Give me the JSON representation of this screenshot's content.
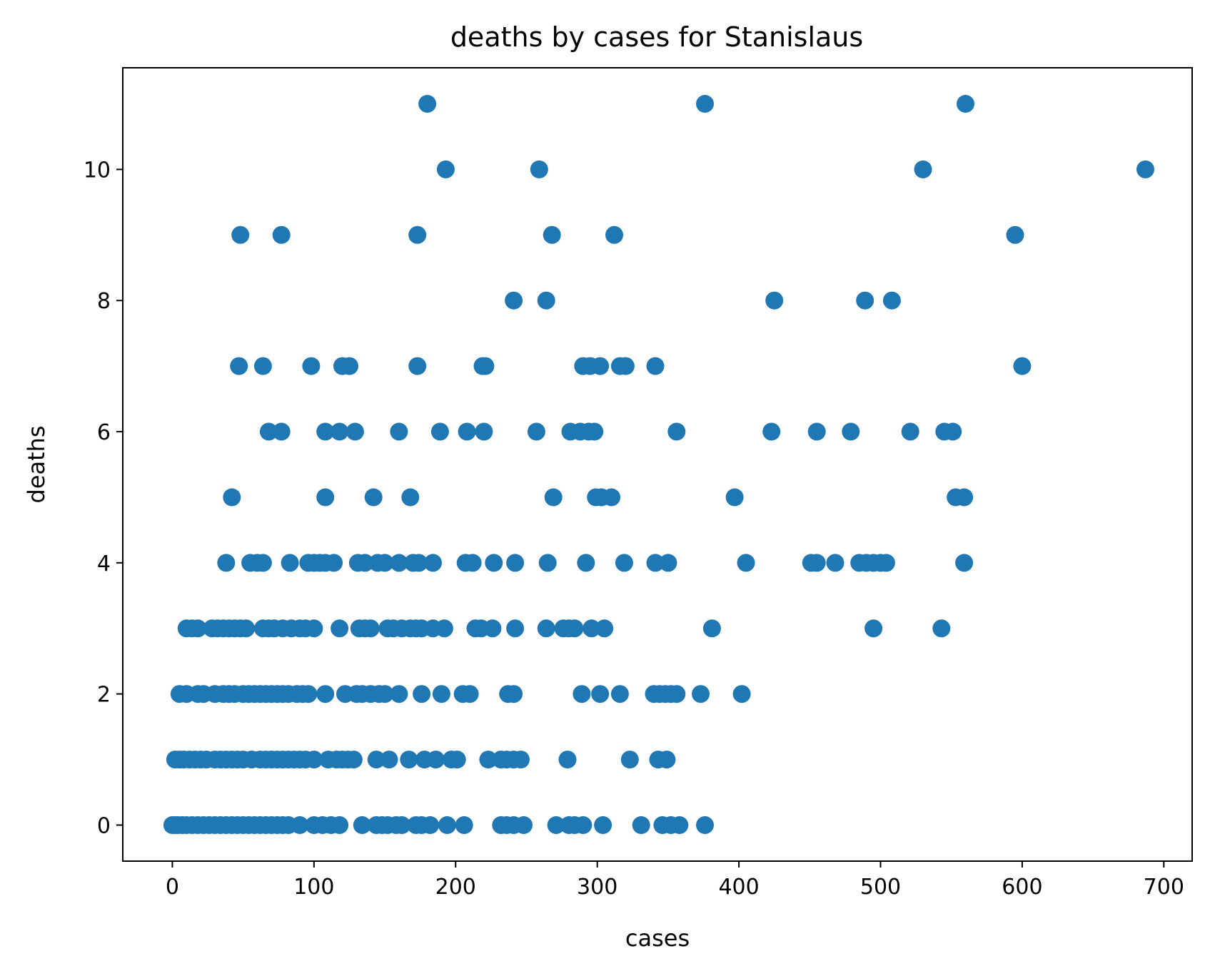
{
  "chart_data": {
    "type": "scatter",
    "title": "deaths by cases for Stanislaus",
    "xlabel": "cases",
    "ylabel": "deaths",
    "xlim": [
      -35,
      720
    ],
    "ylim": [
      -0.55,
      11.55
    ],
    "xticks": [
      0,
      100,
      200,
      300,
      400,
      500,
      600,
      700
    ],
    "yticks": [
      0,
      2,
      4,
      6,
      8,
      10
    ],
    "xtick_labels": [
      "0",
      "100",
      "200",
      "300",
      "400",
      "500",
      "600",
      "700"
    ],
    "ytick_labels": [
      "0",
      "2",
      "4",
      "6",
      "8",
      "10"
    ],
    "grid": false,
    "marker_color": "#1f77b4",
    "series": [
      {
        "points": [
          [
            180,
            11
          ],
          [
            376,
            11
          ],
          [
            560,
            11
          ],
          [
            193,
            10
          ],
          [
            259,
            10
          ],
          [
            530,
            10
          ],
          [
            687,
            10
          ],
          [
            48,
            9
          ],
          [
            77,
            9
          ],
          [
            173,
            9
          ],
          [
            268,
            9
          ],
          [
            312,
            9
          ],
          [
            595,
            9
          ],
          [
            241,
            8
          ],
          [
            264,
            8
          ],
          [
            425,
            8
          ],
          [
            489,
            8
          ],
          [
            508,
            8
          ],
          [
            47,
            7
          ],
          [
            64,
            7
          ],
          [
            98,
            7
          ],
          [
            120,
            7
          ],
          [
            125,
            7
          ],
          [
            173,
            7
          ],
          [
            219,
            7
          ],
          [
            221,
            7
          ],
          [
            290,
            7
          ],
          [
            295,
            7
          ],
          [
            302,
            7
          ],
          [
            316,
            7
          ],
          [
            320,
            7
          ],
          [
            341,
            7
          ],
          [
            600,
            7
          ],
          [
            68,
            6
          ],
          [
            77,
            6
          ],
          [
            108,
            6
          ],
          [
            118,
            6
          ],
          [
            129,
            6
          ],
          [
            160,
            6
          ],
          [
            189,
            6
          ],
          [
            208,
            6
          ],
          [
            220,
            6
          ],
          [
            257,
            6
          ],
          [
            281,
            6
          ],
          [
            288,
            6
          ],
          [
            294,
            6
          ],
          [
            298,
            6
          ],
          [
            356,
            6
          ],
          [
            423,
            6
          ],
          [
            455,
            6
          ],
          [
            479,
            6
          ],
          [
            521,
            6
          ],
          [
            545,
            6
          ],
          [
            551,
            6
          ],
          [
            42,
            5
          ],
          [
            108,
            5
          ],
          [
            142,
            5
          ],
          [
            168,
            5
          ],
          [
            269,
            5
          ],
          [
            299,
            5
          ],
          [
            303,
            5
          ],
          [
            310,
            5
          ],
          [
            397,
            5
          ],
          [
            553,
            5
          ],
          [
            559,
            5
          ],
          [
            38,
            4
          ],
          [
            55,
            4
          ],
          [
            60,
            4
          ],
          [
            64,
            4
          ],
          [
            83,
            4
          ],
          [
            96,
            4
          ],
          [
            100,
            4
          ],
          [
            104,
            4
          ],
          [
            108,
            4
          ],
          [
            114,
            4
          ],
          [
            131,
            4
          ],
          [
            136,
            4
          ],
          [
            145,
            4
          ],
          [
            150,
            4
          ],
          [
            160,
            4
          ],
          [
            170,
            4
          ],
          [
            174,
            4
          ],
          [
            184,
            4
          ],
          [
            207,
            4
          ],
          [
            212,
            4
          ],
          [
            227,
            4
          ],
          [
            242,
            4
          ],
          [
            265,
            4
          ],
          [
            292,
            4
          ],
          [
            319,
            4
          ],
          [
            341,
            4
          ],
          [
            350,
            4
          ],
          [
            405,
            4
          ],
          [
            451,
            4
          ],
          [
            455,
            4
          ],
          [
            468,
            4
          ],
          [
            485,
            4
          ],
          [
            490,
            4
          ],
          [
            495,
            4
          ],
          [
            500,
            4
          ],
          [
            504,
            4
          ],
          [
            559,
            4
          ],
          [
            10,
            3
          ],
          [
            14,
            3
          ],
          [
            18,
            3
          ],
          [
            28,
            3
          ],
          [
            32,
            3
          ],
          [
            36,
            3
          ],
          [
            40,
            3
          ],
          [
            44,
            3
          ],
          [
            48,
            3
          ],
          [
            52,
            3
          ],
          [
            64,
            3
          ],
          [
            68,
            3
          ],
          [
            72,
            3
          ],
          [
            78,
            3
          ],
          [
            84,
            3
          ],
          [
            90,
            3
          ],
          [
            94,
            3
          ],
          [
            100,
            3
          ],
          [
            118,
            3
          ],
          [
            132,
            3
          ],
          [
            136,
            3
          ],
          [
            140,
            3
          ],
          [
            152,
            3
          ],
          [
            156,
            3
          ],
          [
            162,
            3
          ],
          [
            168,
            3
          ],
          [
            172,
            3
          ],
          [
            176,
            3
          ],
          [
            184,
            3
          ],
          [
            192,
            3
          ],
          [
            214,
            3
          ],
          [
            218,
            3
          ],
          [
            226,
            3
          ],
          [
            242,
            3
          ],
          [
            264,
            3
          ],
          [
            276,
            3
          ],
          [
            280,
            3
          ],
          [
            284,
            3
          ],
          [
            296,
            3
          ],
          [
            305,
            3
          ],
          [
            381,
            3
          ],
          [
            495,
            3
          ],
          [
            543,
            3
          ],
          [
            5,
            2
          ],
          [
            10,
            2
          ],
          [
            18,
            2
          ],
          [
            22,
            2
          ],
          [
            30,
            2
          ],
          [
            36,
            2
          ],
          [
            40,
            2
          ],
          [
            44,
            2
          ],
          [
            50,
            2
          ],
          [
            54,
            2
          ],
          [
            58,
            2
          ],
          [
            62,
            2
          ],
          [
            66,
            2
          ],
          [
            70,
            2
          ],
          [
            74,
            2
          ],
          [
            78,
            2
          ],
          [
            82,
            2
          ],
          [
            88,
            2
          ],
          [
            92,
            2
          ],
          [
            96,
            2
          ],
          [
            108,
            2
          ],
          [
            122,
            2
          ],
          [
            130,
            2
          ],
          [
            134,
            2
          ],
          [
            140,
            2
          ],
          [
            146,
            2
          ],
          [
            150,
            2
          ],
          [
            160,
            2
          ],
          [
            176,
            2
          ],
          [
            190,
            2
          ],
          [
            205,
            2
          ],
          [
            210,
            2
          ],
          [
            237,
            2
          ],
          [
            241,
            2
          ],
          [
            289,
            2
          ],
          [
            302,
            2
          ],
          [
            316,
            2
          ],
          [
            340,
            2
          ],
          [
            344,
            2
          ],
          [
            348,
            2
          ],
          [
            352,
            2
          ],
          [
            356,
            2
          ],
          [
            373,
            2
          ],
          [
            402,
            2
          ],
          [
            2,
            1
          ],
          [
            5,
            1
          ],
          [
            8,
            1
          ],
          [
            12,
            1
          ],
          [
            16,
            1
          ],
          [
            20,
            1
          ],
          [
            24,
            1
          ],
          [
            30,
            1
          ],
          [
            34,
            1
          ],
          [
            38,
            1
          ],
          [
            42,
            1
          ],
          [
            46,
            1
          ],
          [
            50,
            1
          ],
          [
            56,
            1
          ],
          [
            62,
            1
          ],
          [
            66,
            1
          ],
          [
            70,
            1
          ],
          [
            74,
            1
          ],
          [
            78,
            1
          ],
          [
            82,
            1
          ],
          [
            86,
            1
          ],
          [
            90,
            1
          ],
          [
            94,
            1
          ],
          [
            100,
            1
          ],
          [
            110,
            1
          ],
          [
            116,
            1
          ],
          [
            120,
            1
          ],
          [
            124,
            1
          ],
          [
            128,
            1
          ],
          [
            144,
            1
          ],
          [
            153,
            1
          ],
          [
            167,
            1
          ],
          [
            178,
            1
          ],
          [
            186,
            1
          ],
          [
            197,
            1
          ],
          [
            201,
            1
          ],
          [
            223,
            1
          ],
          [
            232,
            1
          ],
          [
            236,
            1
          ],
          [
            241,
            1
          ],
          [
            246,
            1
          ],
          [
            279,
            1
          ],
          [
            323,
            1
          ],
          [
            343,
            1
          ],
          [
            349,
            1
          ],
          [
            0,
            0
          ],
          [
            2,
            0
          ],
          [
            4,
            0
          ],
          [
            7,
            0
          ],
          [
            10,
            0
          ],
          [
            14,
            0
          ],
          [
            18,
            0
          ],
          [
            22,
            0
          ],
          [
            26,
            0
          ],
          [
            30,
            0
          ],
          [
            34,
            0
          ],
          [
            38,
            0
          ],
          [
            42,
            0
          ],
          [
            46,
            0
          ],
          [
            50,
            0
          ],
          [
            54,
            0
          ],
          [
            58,
            0
          ],
          [
            62,
            0
          ],
          [
            66,
            0
          ],
          [
            70,
            0
          ],
          [
            74,
            0
          ],
          [
            78,
            0
          ],
          [
            82,
            0
          ],
          [
            90,
            0
          ],
          [
            100,
            0
          ],
          [
            106,
            0
          ],
          [
            112,
            0
          ],
          [
            118,
            0
          ],
          [
            134,
            0
          ],
          [
            144,
            0
          ],
          [
            148,
            0
          ],
          [
            152,
            0
          ],
          [
            158,
            0
          ],
          [
            162,
            0
          ],
          [
            172,
            0
          ],
          [
            176,
            0
          ],
          [
            182,
            0
          ],
          [
            194,
            0
          ],
          [
            206,
            0
          ],
          [
            232,
            0
          ],
          [
            236,
            0
          ],
          [
            241,
            0
          ],
          [
            248,
            0
          ],
          [
            271,
            0
          ],
          [
            280,
            0
          ],
          [
            284,
            0
          ],
          [
            290,
            0
          ],
          [
            304,
            0
          ],
          [
            331,
            0
          ],
          [
            346,
            0
          ],
          [
            352,
            0
          ],
          [
            358,
            0
          ],
          [
            376,
            0
          ]
        ]
      }
    ]
  }
}
